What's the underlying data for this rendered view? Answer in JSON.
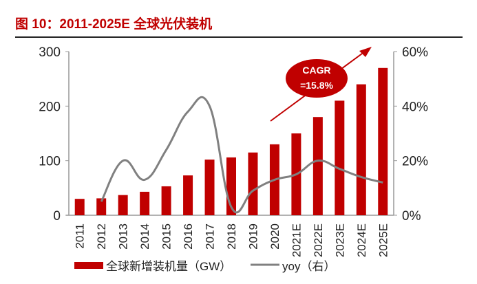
{
  "title": "图 10：2011-2025E 全球光伏装机",
  "chart_data": {
    "type": "bar+line",
    "categories": [
      "2011",
      "2012",
      "2013",
      "2014",
      "2015",
      "2016",
      "2017",
      "2018",
      "2019",
      "2020",
      "2021E",
      "2022E",
      "2023E",
      "2024E",
      "2025E"
    ],
    "series": [
      {
        "name": "全球新增装机量（GW）",
        "type": "bar",
        "axis": "left",
        "color": "#c00000",
        "values": [
          30,
          31,
          37,
          43,
          53,
          73,
          102,
          106,
          115,
          130,
          150,
          180,
          210,
          240,
          270
        ]
      },
      {
        "name": "yoy（右）",
        "type": "line",
        "axis": "right",
        "color": "#808080",
        "values": [
          null,
          5,
          20,
          13,
          24,
          38,
          40,
          3,
          9,
          13,
          15,
          20,
          17,
          14,
          12
        ]
      }
    ],
    "y_left": {
      "range": [
        0,
        300
      ],
      "ticks": [
        "0",
        "100",
        "200",
        "300"
      ]
    },
    "y_right": {
      "range": [
        0,
        60
      ],
      "ticks": [
        "0%",
        "20%",
        "40%",
        "60%"
      ]
    },
    "annotation": {
      "line1": "CAGR",
      "line2": "=15.8%",
      "color": "#c00000"
    },
    "grid": false,
    "legend_placement": "bottom"
  }
}
